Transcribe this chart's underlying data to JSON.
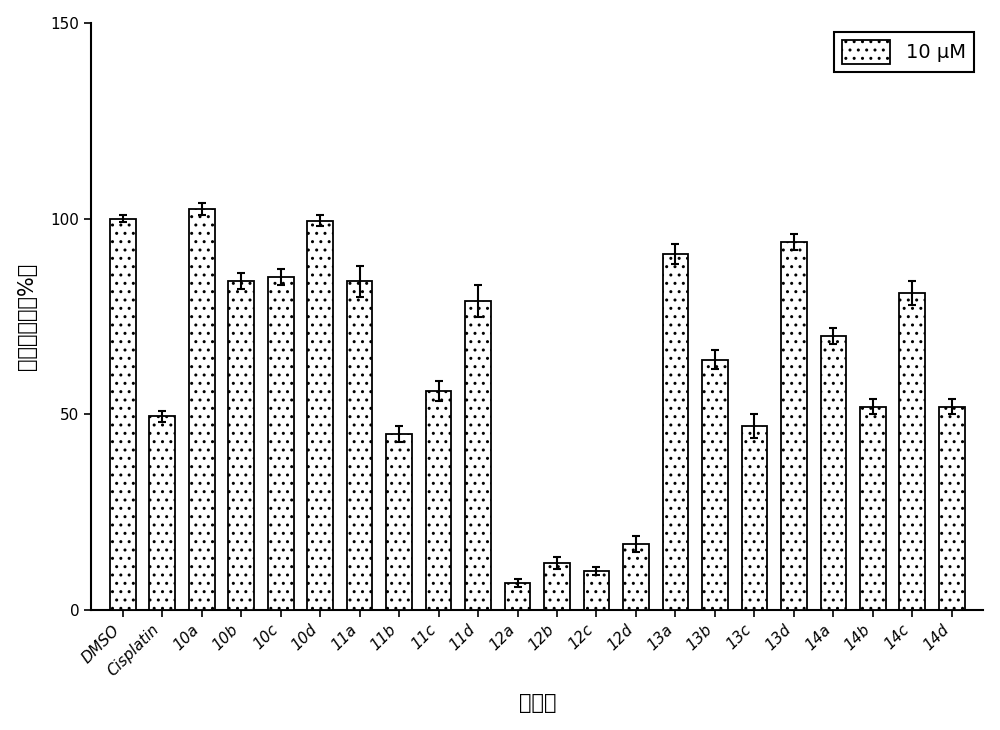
{
  "categories": [
    "DMSO",
    "Cisplatin",
    "10a",
    "10b",
    "10c",
    "10d",
    "11a",
    "11b",
    "11c",
    "11d",
    "12a",
    "12b",
    "12c",
    "12d",
    "13a",
    "13b",
    "13c",
    "13d",
    "14a",
    "14b",
    "14c",
    "14d"
  ],
  "values": [
    100,
    49.5,
    102.5,
    84,
    85,
    99.5,
    84,
    45,
    56,
    79,
    7,
    12,
    10,
    17,
    91,
    64,
    47,
    94,
    70,
    52,
    81,
    52
  ],
  "errors": [
    1.0,
    1.5,
    1.5,
    2.0,
    2.0,
    1.5,
    4.0,
    2.0,
    2.5,
    4.0,
    1.0,
    1.5,
    1.0,
    2.0,
    2.5,
    2.5,
    3.0,
    2.0,
    2.0,
    2.0,
    3.0,
    2.0
  ],
  "bar_color": "#ffffff",
  "bar_edge_color": "#000000",
  "bar_width": 0.65,
  "ylim": [
    0,
    150
  ],
  "yticks": [
    0,
    50,
    100,
    150
  ],
  "xlabel": "化合物",
  "ylabel": "细胞存活率（%）",
  "legend_label": "10 μM",
  "background_color": "#ffffff",
  "spine_color": "#000000",
  "tick_label_fontsize": 11,
  "axis_label_fontsize": 15,
  "legend_fontsize": 14
}
